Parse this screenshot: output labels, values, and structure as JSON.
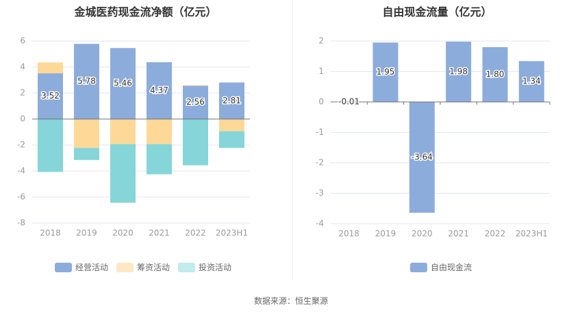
{
  "colors": {
    "operating": "#8cacdb",
    "financing": "#fed897",
    "investing": "#86d5d8",
    "free_cash": "#8cacdb",
    "legend_financing": "#fde7c5",
    "legend_investing": "#c3eaec",
    "grid": "#e0e6f1",
    "axis": "#6e7079"
  },
  "source": "数据来源：恒生聚源",
  "chart_data": [
    {
      "type": "bar",
      "stacked": true,
      "title": "金城医药现金流净额（亿元）",
      "categories": [
        "2018",
        "2019",
        "2020",
        "2021",
        "2022",
        "2023H1"
      ],
      "ylim": [
        -8,
        6
      ],
      "yticks": [
        6,
        4,
        2,
        0,
        -2,
        -4,
        -6,
        -8
      ],
      "grid": true,
      "legend_position": "bottom",
      "series": [
        {
          "name": "经营活动",
          "values": [
            3.52,
            5.78,
            5.46,
            4.37,
            2.56,
            2.81
          ],
          "labels": [
            "3.52",
            "5.78",
            "5.46",
            "4.37",
            "2.56",
            "2.81"
          ]
        },
        {
          "name": "筹资活动",
          "values": [
            0.83,
            -2.22,
            -1.93,
            -1.93,
            0.05,
            -0.94
          ]
        },
        {
          "name": "投资活动",
          "values": [
            -4.07,
            -0.93,
            -4.51,
            -2.32,
            -3.56,
            -1.28
          ]
        }
      ]
    },
    {
      "type": "bar",
      "title": "自由现金流量（亿元）",
      "categories": [
        "2018",
        "2019",
        "2020",
        "2021",
        "2022",
        "2023H1"
      ],
      "ylim": [
        -4,
        2
      ],
      "yticks": [
        2,
        1,
        0,
        -1,
        -2,
        -3,
        -4
      ],
      "grid": true,
      "legend_position": "bottom",
      "series": [
        {
          "name": "自由现金流",
          "values": [
            -0.01,
            1.95,
            -3.64,
            1.98,
            1.8,
            1.34
          ],
          "labels": [
            "-0.01",
            "1.95",
            "-3.64",
            "1.98",
            "1.80",
            "1.34"
          ]
        }
      ]
    }
  ]
}
